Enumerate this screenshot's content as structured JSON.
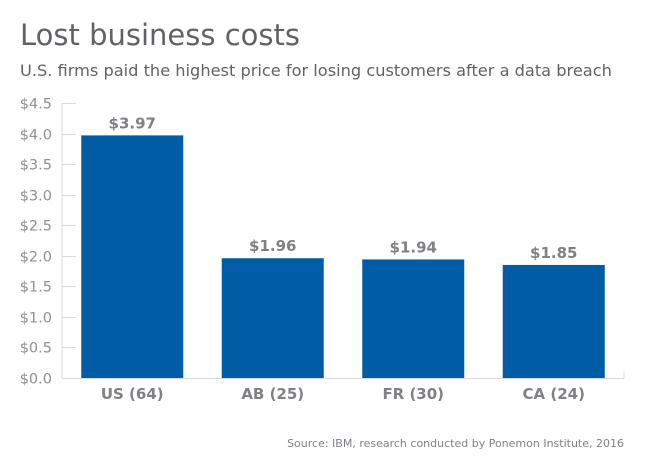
{
  "chart_data": {
    "type": "bar",
    "title": "Lost business costs",
    "subtitle": "U.S. firms paid the highest price for losing customers after a data breach",
    "source": "Source: IBM, research conducted by Ponemon Institute, 2016",
    "categories": [
      "US (64)",
      "AB (25)",
      "FR (30)",
      "CA (24)"
    ],
    "values": [
      3.97,
      1.96,
      1.94,
      1.85
    ],
    "data_labels": [
      "$3.97",
      "$1.96",
      "$1.94",
      "$1.85"
    ],
    "ylim": [
      0,
      4.5
    ],
    "yticks": [
      0,
      0.5,
      1.0,
      1.5,
      2.0,
      2.5,
      3.0,
      3.5,
      4.0,
      4.5
    ],
    "ytick_labels": [
      "$0.0",
      "$0.5",
      "$1.0",
      "$1.5",
      "$2.0",
      "$2.5",
      "$3.0",
      "$3.5",
      "$4.0",
      "$4.5"
    ],
    "xlabel": "",
    "ylabel": "",
    "grid": false,
    "bar_color": "#005ca4"
  }
}
